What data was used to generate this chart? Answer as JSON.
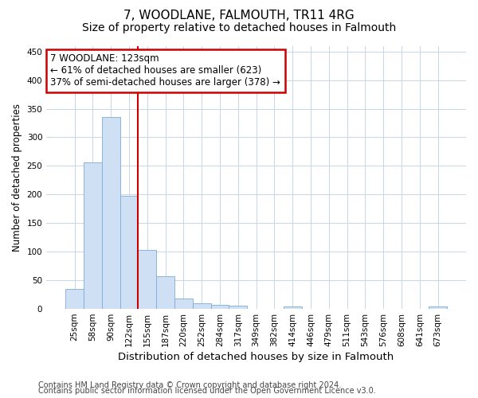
{
  "title": "7, WOODLANE, FALMOUTH, TR11 4RG",
  "subtitle": "Size of property relative to detached houses in Falmouth",
  "xlabel": "Distribution of detached houses by size in Falmouth",
  "ylabel": "Number of detached properties",
  "bar_labels": [
    "25sqm",
    "58sqm",
    "90sqm",
    "122sqm",
    "155sqm",
    "187sqm",
    "220sqm",
    "252sqm",
    "284sqm",
    "317sqm",
    "349sqm",
    "382sqm",
    "414sqm",
    "446sqm",
    "479sqm",
    "511sqm",
    "543sqm",
    "576sqm",
    "608sqm",
    "641sqm",
    "673sqm"
  ],
  "bar_values": [
    35,
    256,
    335,
    197,
    103,
    57,
    18,
    10,
    7,
    5,
    0,
    0,
    4,
    0,
    0,
    0,
    0,
    0,
    0,
    0,
    4
  ],
  "bar_color": "#cfe0f5",
  "bar_edge_color": "#7badd4",
  "red_line_x": 3.5,
  "annotation_text": "7 WOODLANE: 123sqm\n← 61% of detached houses are smaller (623)\n37% of semi-detached houses are larger (378) →",
  "annotation_box_color": "#ffffff",
  "annotation_box_edge_color": "#cc0000",
  "red_line_color": "#cc0000",
  "ylim": [
    0,
    460
  ],
  "yticks": [
    0,
    50,
    100,
    150,
    200,
    250,
    300,
    350,
    400,
    450
  ],
  "footer_line1": "Contains HM Land Registry data © Crown copyright and database right 2024.",
  "footer_line2": "Contains public sector information licensed under the Open Government Licence v3.0.",
  "background_color": "#ffffff",
  "grid_color": "#c8d4e8",
  "title_fontsize": 11,
  "subtitle_fontsize": 10,
  "ylabel_fontsize": 8.5,
  "xlabel_fontsize": 9.5,
  "tick_fontsize": 7.5,
  "annotation_fontsize": 8.5,
  "footer_fontsize": 7
}
